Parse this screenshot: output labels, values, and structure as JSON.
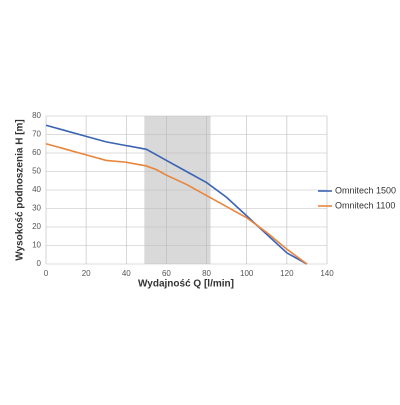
{
  "chart_data": {
    "type": "line",
    "x_label": "Wydajność Q [l/min]",
    "y_label": "Wysokość podnoszenia H [m]",
    "x": [
      0,
      10,
      20,
      30,
      40,
      50,
      55,
      60,
      70,
      80,
      90,
      100,
      110,
      120,
      130
    ],
    "series": [
      {
        "name": "Omnitech 1500",
        "color": "#3b63b3",
        "values": [
          75,
          72,
          69,
          66,
          64,
          62,
          59,
          56,
          50,
          44,
          36,
          26,
          16,
          6,
          0
        ]
      },
      {
        "name": "Omnitech 1100",
        "color": "#e8853d",
        "values": [
          65,
          62,
          59,
          56,
          55,
          53,
          51,
          48,
          43,
          37,
          31,
          25,
          17,
          8,
          0
        ]
      }
    ],
    "shaded_xrange": [
      49,
      82
    ],
    "xlim": [
      0,
      140
    ],
    "xticks": [
      0,
      20,
      40,
      60,
      80,
      100,
      120,
      140
    ],
    "ylim": [
      0,
      80
    ],
    "yticks": [
      0,
      10,
      20,
      30,
      40,
      50,
      60,
      70,
      80
    ],
    "grid": true,
    "legend": "right"
  }
}
